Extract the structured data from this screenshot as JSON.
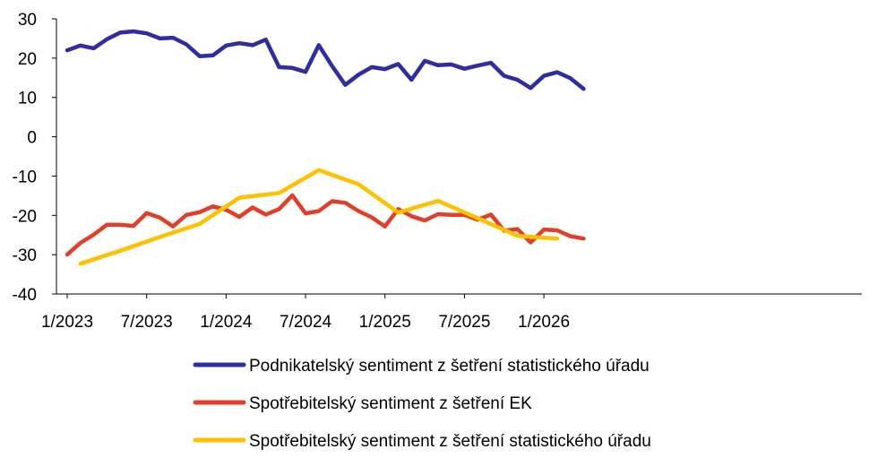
{
  "chart_data": {
    "type": "line",
    "title": "",
    "xlabel": "",
    "ylabel": "",
    "ylim": [
      -40,
      30
    ],
    "yticks": [
      "30",
      "20",
      "10",
      "0",
      "-10",
      "-20",
      "-30",
      "-40"
    ],
    "xticks": [
      "1/2023",
      "7/2023",
      "1/2024",
      "7/2024",
      "1/2025",
      "7/2025",
      "1/2026"
    ],
    "x_unit": "month index starting 1/2023",
    "grid": false,
    "legend_position": "bottom",
    "series": [
      {
        "name": "Podnikatelský sentiment z šetření statistického úřadu",
        "color": "#2E2EA0",
        "x": [
          0,
          1,
          2,
          3,
          4,
          5,
          6,
          7,
          8,
          9,
          10,
          11,
          12,
          13,
          14,
          15,
          16,
          17,
          18,
          19,
          20,
          21,
          22,
          23,
          24,
          25,
          26,
          27,
          28,
          29,
          30,
          31,
          32,
          33,
          34,
          35,
          36,
          37,
          38,
          39
        ],
        "y": [
          22.0,
          23.2,
          22.5,
          24.8,
          26.5,
          26.8,
          26.3,
          25.0,
          25.2,
          23.5,
          20.5,
          20.7,
          23.2,
          23.8,
          23.3,
          24.7,
          17.7,
          17.5,
          16.5,
          23.3,
          18.0,
          13.2,
          15.8,
          17.7,
          17.2,
          18.5,
          14.5,
          19.3,
          18.2,
          18.4,
          17.3,
          18.1,
          18.8,
          15.5,
          14.5,
          12.4,
          15.5,
          16.4,
          14.9,
          12.2
        ]
      },
      {
        "name": "Spotřebitelský sentiment z šetření EK",
        "color": "#E0402A",
        "x": [
          0,
          1,
          2,
          3,
          4,
          5,
          6,
          7,
          8,
          9,
          10,
          11,
          12,
          13,
          14,
          15,
          16,
          17,
          18,
          19,
          20,
          21,
          22,
          23,
          24,
          25,
          26,
          27,
          28,
          29,
          30,
          31,
          32,
          33,
          34,
          35,
          36,
          37,
          38,
          39
        ],
        "y": [
          -30.0,
          -27.0,
          -24.9,
          -22.4,
          -22.4,
          -22.7,
          -19.4,
          -20.6,
          -22.8,
          -19.9,
          -19.2,
          -17.7,
          -18.6,
          -20.4,
          -18.0,
          -19.8,
          -18.4,
          -14.9,
          -19.5,
          -18.9,
          -16.4,
          -16.8,
          -18.9,
          -20.5,
          -22.8,
          -18.4,
          -20.2,
          -21.3,
          -19.7,
          -19.9,
          -19.9,
          -21.1,
          -19.8,
          -23.9,
          -23.5,
          -26.9,
          -23.6,
          -23.8,
          -25.3,
          -25.9
        ]
      },
      {
        "name": "Spotřebitelský sentiment z šetření statistického úřadu",
        "color": "#FFC000",
        "x": [
          1,
          4,
          7,
          10,
          13,
          16,
          19,
          22,
          25,
          28,
          31,
          34,
          37
        ],
        "y": [
          -32.3,
          -29.0,
          -25.5,
          -22.2,
          -15.5,
          -14.3,
          -8.5,
          -12.1,
          -19.3,
          -16.3,
          -20.7,
          -25.2,
          -25.9
        ]
      }
    ]
  }
}
